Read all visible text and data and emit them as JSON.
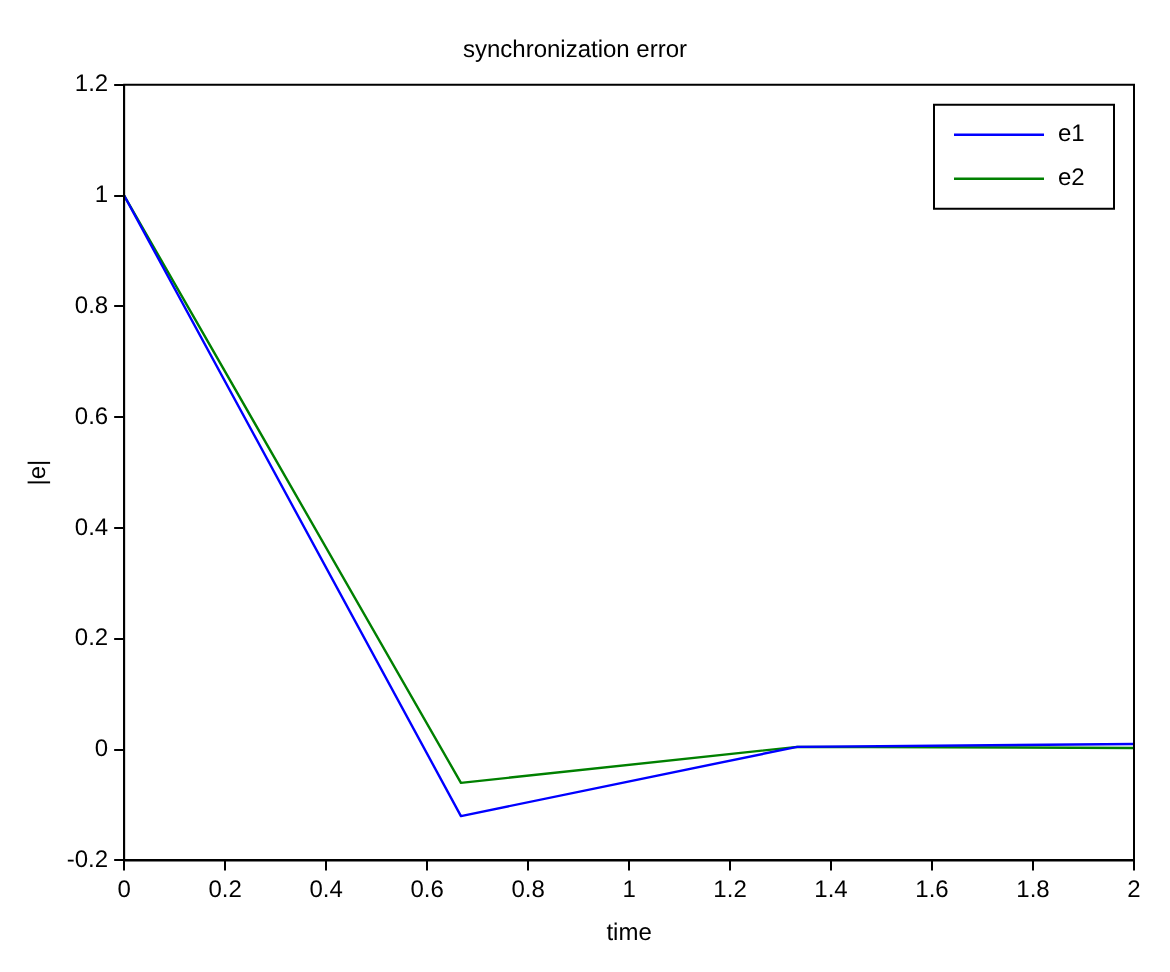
{
  "chart_data": {
    "type": "line",
    "title": "synchronization error",
    "xlabel": "time",
    "ylabel": "|e|",
    "x": [
      0,
      0.667,
      1.333,
      2
    ],
    "series": [
      {
        "name": "e1",
        "color": "#0000ff",
        "values": [
          1,
          -0.12,
          0.005,
          0.01
        ]
      },
      {
        "name": "e2",
        "color": "#008000",
        "values": [
          1,
          -0.06,
          0.005,
          0.003
        ]
      }
    ],
    "xlim": [
      0,
      2
    ],
    "xticks": [
      0,
      0.2,
      0.4,
      0.6,
      0.8,
      1,
      1.2,
      1.4,
      1.6,
      1.8,
      2
    ],
    "ylim": [
      -0.2,
      1.2
    ],
    "yticks": [
      -0.2,
      0,
      0.2,
      0.4,
      0.6,
      0.8,
      1,
      1.2
    ],
    "grid": false,
    "legend": "top right",
    "marker": "none",
    "line_style": "solid"
  }
}
